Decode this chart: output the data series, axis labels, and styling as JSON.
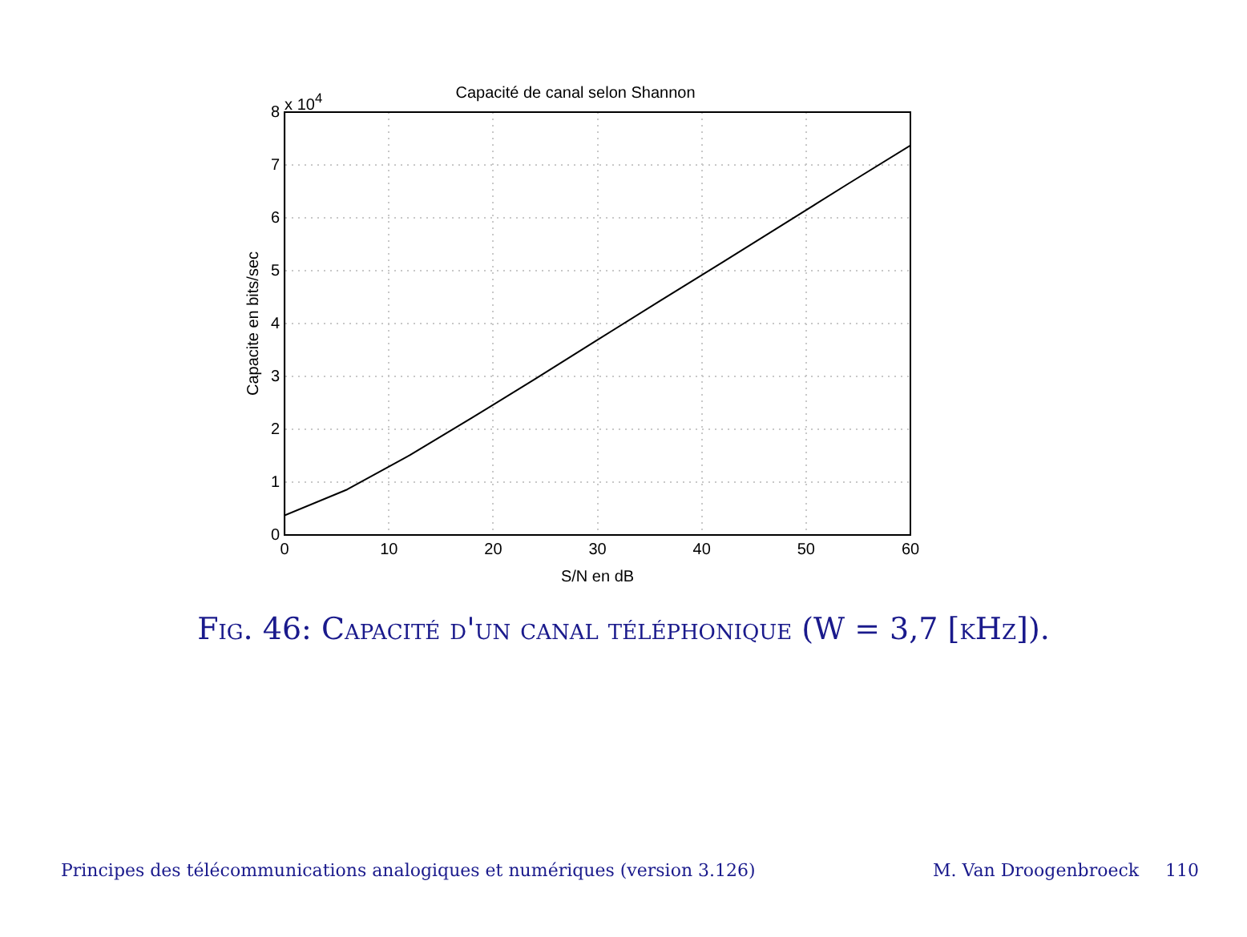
{
  "chart_data": {
    "type": "line",
    "title": "Capacité de canal selon Shannon",
    "xlabel": "S/N en dB",
    "ylabel": "Capacite en bits/sec",
    "x": [
      0,
      6,
      12,
      18,
      24,
      30,
      36,
      42,
      48,
      54,
      60
    ],
    "series": [
      {
        "color": "#000000",
        "values": [
          0.37,
          0.86,
          1.51,
          2.22,
          2.95,
          3.69,
          4.43,
          5.16,
          5.9,
          6.64,
          7.37
        ]
      }
    ],
    "xlim": [
      0,
      60
    ],
    "xticks": [
      0,
      10,
      20,
      30,
      40,
      50,
      60
    ],
    "ylim": [
      0,
      8
    ],
    "yticks": [
      0,
      1,
      2,
      3,
      4,
      5,
      6,
      7,
      8
    ],
    "grid": true,
    "legend": false,
    "marker": "none",
    "line_style": "solid",
    "annotations": [
      "x 10$^{4}$",
      "Fig. 46: Capacité d'un canal téléphonique (W = 3,7 [kHz]).",
      "Principes des télécommunications analogiques et numériques (version 3.126)",
      "M. Van Droogenbroeck",
      "110"
    ]
  }
}
